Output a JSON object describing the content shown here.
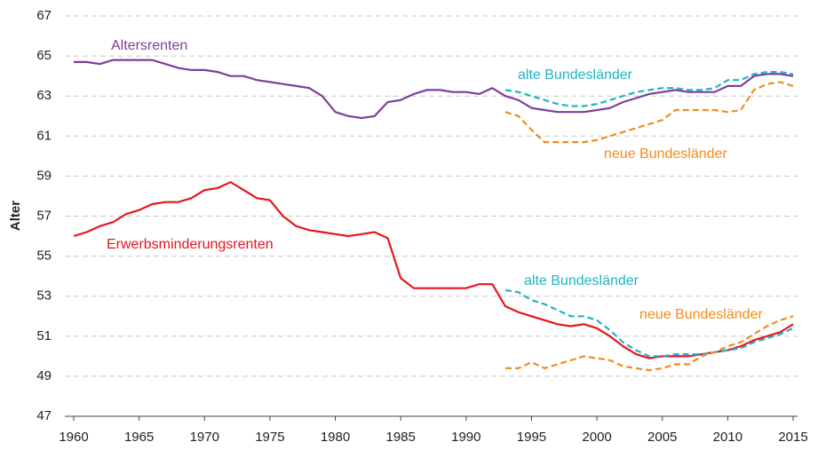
{
  "chart_data": {
    "type": "line",
    "y_label": "Alter",
    "x": [
      1960,
      1961,
      1962,
      1963,
      1964,
      1965,
      1966,
      1967,
      1968,
      1969,
      1970,
      1971,
      1972,
      1973,
      1974,
      1975,
      1976,
      1977,
      1978,
      1979,
      1980,
      1981,
      1982,
      1983,
      1984,
      1985,
      1986,
      1987,
      1988,
      1989,
      1990,
      1991,
      1992,
      1993,
      1994,
      1995,
      1996,
      1997,
      1998,
      1999,
      2000,
      2001,
      2002,
      2003,
      2004,
      2005,
      2006,
      2007,
      2008,
      2009,
      2010,
      2011,
      2012,
      2013,
      2014,
      2015
    ],
    "xlim": [
      1960,
      2015
    ],
    "xticks": [
      1960,
      1965,
      1970,
      1975,
      1980,
      1985,
      1990,
      1995,
      2000,
      2005,
      2010,
      2015
    ],
    "ylim": [
      47,
      67
    ],
    "yticks": [
      47,
      49,
      51,
      53,
      55,
      57,
      59,
      61,
      63,
      65,
      67
    ],
    "grid": true,
    "series": [
      {
        "name": "Altersrenten",
        "color": "#7d3f98",
        "line_style": "solid",
        "values": [
          64.7,
          64.7,
          64.6,
          64.8,
          64.8,
          64.8,
          64.8,
          64.6,
          64.4,
          64.3,
          64.3,
          64.2,
          64.0,
          64.0,
          63.8,
          63.7,
          63.6,
          63.5,
          63.4,
          63.0,
          62.2,
          62.0,
          61.9,
          62.0,
          62.7,
          62.8,
          63.1,
          63.3,
          63.3,
          63.2,
          63.2,
          63.1,
          63.4,
          63.0,
          62.8,
          62.4,
          62.3,
          62.2,
          62.2,
          62.2,
          62.3,
          62.4,
          62.7,
          62.9,
          63.1,
          63.2,
          63.3,
          63.2,
          63.2,
          63.2,
          63.5,
          63.5,
          64.0,
          64.1,
          64.1,
          64.0
        ]
      },
      {
        "name": "alte Bundesländer",
        "color": "#1eb4c8",
        "line_style": "dashed",
        "values": [
          null,
          null,
          null,
          null,
          null,
          null,
          null,
          null,
          null,
          null,
          null,
          null,
          null,
          null,
          null,
          null,
          null,
          null,
          null,
          null,
          null,
          null,
          null,
          null,
          null,
          null,
          null,
          null,
          null,
          null,
          null,
          null,
          null,
          63.3,
          63.2,
          63.0,
          62.8,
          62.6,
          62.5,
          62.5,
          62.6,
          62.8,
          63.0,
          63.2,
          63.3,
          63.4,
          63.4,
          63.3,
          63.3,
          63.4,
          63.8,
          63.8,
          64.1,
          64.2,
          64.2,
          64.1
        ]
      },
      {
        "name": "neue Bundesländer",
        "color": "#f28c1e",
        "line_style": "dashed",
        "values": [
          null,
          null,
          null,
          null,
          null,
          null,
          null,
          null,
          null,
          null,
          null,
          null,
          null,
          null,
          null,
          null,
          null,
          null,
          null,
          null,
          null,
          null,
          null,
          null,
          null,
          null,
          null,
          null,
          null,
          null,
          null,
          null,
          null,
          62.2,
          62.0,
          61.3,
          60.7,
          60.7,
          60.7,
          60.7,
          60.8,
          61.0,
          61.2,
          61.4,
          61.6,
          61.8,
          62.3,
          62.3,
          62.3,
          62.3,
          62.2,
          62.3,
          63.3,
          63.6,
          63.7,
          63.5
        ]
      },
      {
        "name": "Erwerbsminderungsrenten",
        "color": "#e8141e",
        "line_style": "solid",
        "values": [
          56.0,
          56.2,
          56.5,
          56.7,
          57.1,
          57.3,
          57.6,
          57.7,
          57.7,
          57.9,
          58.3,
          58.4,
          58.7,
          58.3,
          57.9,
          57.8,
          57.0,
          56.5,
          56.3,
          56.2,
          56.1,
          56.0,
          56.1,
          56.2,
          55.9,
          53.9,
          53.4,
          53.4,
          53.4,
          53.4,
          53.4,
          53.6,
          53.6,
          52.5,
          52.2,
          52.0,
          51.8,
          51.6,
          51.5,
          51.6,
          51.4,
          51.0,
          50.5,
          50.1,
          49.9,
          50.0,
          50.0,
          50.0,
          50.1,
          50.2,
          50.3,
          50.5,
          50.8,
          51.0,
          51.2,
          51.6
        ]
      },
      {
        "name": "alte Bundesländer",
        "color": "#1eb4c8",
        "line_style": "dashed",
        "values": [
          null,
          null,
          null,
          null,
          null,
          null,
          null,
          null,
          null,
          null,
          null,
          null,
          null,
          null,
          null,
          null,
          null,
          null,
          null,
          null,
          null,
          null,
          null,
          null,
          null,
          null,
          null,
          null,
          null,
          null,
          null,
          null,
          null,
          53.3,
          53.2,
          52.8,
          52.6,
          52.3,
          52.0,
          52.0,
          51.8,
          51.3,
          50.7,
          50.3,
          50.0,
          50.0,
          50.1,
          50.1,
          50.1,
          50.2,
          50.3,
          50.4,
          50.7,
          50.9,
          51.1,
          51.4
        ]
      },
      {
        "name": "neue Bundesländer",
        "color": "#f28c1e",
        "line_style": "dashed",
        "values": [
          null,
          null,
          null,
          null,
          null,
          null,
          null,
          null,
          null,
          null,
          null,
          null,
          null,
          null,
          null,
          null,
          null,
          null,
          null,
          null,
          null,
          null,
          null,
          null,
          null,
          null,
          null,
          null,
          null,
          null,
          null,
          null,
          null,
          49.4,
          49.4,
          49.7,
          49.4,
          49.6,
          49.8,
          50.0,
          49.9,
          49.8,
          49.5,
          49.4,
          49.3,
          49.4,
          49.6,
          49.6,
          50.0,
          50.2,
          50.5,
          50.7,
          51.1,
          51.5,
          51.8,
          52.0
        ]
      }
    ]
  }
}
